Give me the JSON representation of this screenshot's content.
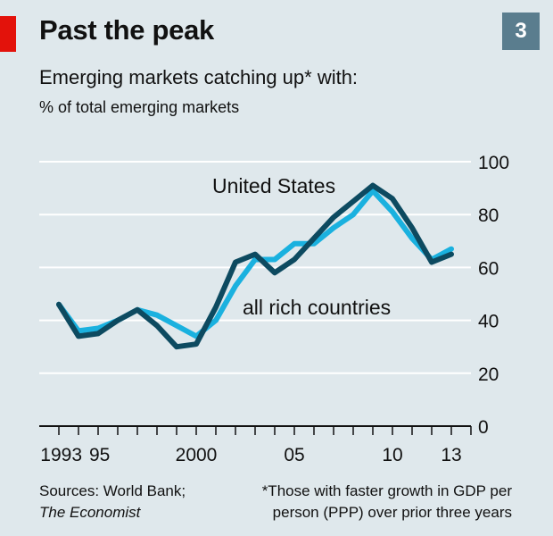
{
  "header": {
    "title": "Past the peak",
    "chart_number": "3",
    "subtitle": "Emerging markets catching up* with:",
    "unit": "% of total emerging markets"
  },
  "footer": {
    "source_line1": "Sources: World Bank;",
    "source_line2": "The Economist",
    "note_line1": "*Those with faster growth in GDP per",
    "note_line2": "person (PPP) over prior three years"
  },
  "colors": {
    "background": "#dfe8ec",
    "accent_red": "#e3120b",
    "united_states": "#0d4a60",
    "all_rich_countries": "#1ab1df",
    "gridline": "#ffffff"
  },
  "chart_data": {
    "type": "line",
    "x": [
      1993,
      1994,
      1995,
      1996,
      1997,
      1998,
      1999,
      2000,
      2001,
      2002,
      2003,
      2004,
      2005,
      2006,
      2007,
      2008,
      2009,
      2010,
      2011,
      2012,
      2013
    ],
    "series": [
      {
        "name": "United States",
        "color": "#0d4a60",
        "values": [
          46,
          34,
          35,
          40,
          44,
          38,
          30,
          31,
          45,
          62,
          65,
          58,
          63,
          71,
          79,
          85,
          91,
          86,
          75,
          62,
          65
        ]
      },
      {
        "name": "all rich countries",
        "color": "#1ab1df",
        "values": [
          46,
          36,
          37,
          40,
          44,
          42,
          38,
          34,
          40,
          53,
          63,
          63,
          69,
          69,
          75,
          80,
          89,
          81,
          71,
          63,
          67
        ]
      }
    ],
    "x_tick_labels": [
      "1993",
      "95",
      "2000",
      "05",
      "10",
      "13"
    ],
    "x_tick_years": [
      1993,
      1995,
      2000,
      2005,
      2010,
      2013
    ],
    "y_ticks": [
      0,
      20,
      40,
      60,
      80,
      100
    ],
    "ylim": [
      0,
      100
    ],
    "xlim": [
      1992,
      2014
    ],
    "grid": true,
    "y_axis_side": "right"
  }
}
